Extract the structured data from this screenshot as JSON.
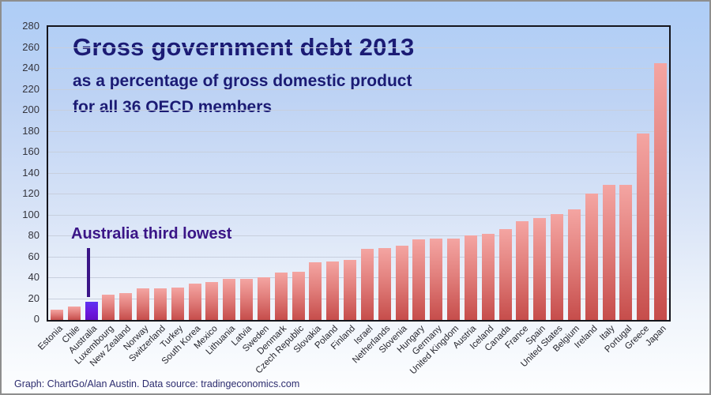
{
  "figure": {
    "title": "Gross government debt 2013",
    "subtitle_line1": "as a percentage of gross domestic product",
    "subtitle_line2": "for all 36 OECD members",
    "annotation": "Australia third lowest",
    "footer": "Graph: ChartGo/Alan Austin. Data source: tradingeconomics.com"
  },
  "colors": {
    "title_navy": "#1b1b74",
    "annotation_purple": "#3a1587",
    "bar_red_top": "#f4a5a2",
    "bar_red_bottom": "#c64d4b",
    "bar_highlight_top": "#5d33f2",
    "bar_highlight_bottom": "#6410c6",
    "background_top": "#aecdf6",
    "background_bottom": "#fdfeff",
    "gridline": "#c7cfdd"
  },
  "chart_data": {
    "type": "bar",
    "title": "Gross government debt 2013",
    "subtitle": "as a percentage of gross domestic product for all 36 OECD members",
    "categories": [
      "Estonia",
      "Chile",
      "Australia",
      "Luxembourg",
      "New Zealand",
      "Norway",
      "Switzerland",
      "Turkey",
      "South Korea",
      "Mexico",
      "Lithuania",
      "Latvia",
      "Sweden",
      "Denmark",
      "Czech Republic",
      "Slovakia",
      "Poland",
      "Finland",
      "Israel",
      "Netherlands",
      "Slovenia",
      "Hungary",
      "Germany",
      "United Kingdom",
      "Austria",
      "Iceland",
      "Canada",
      "France",
      "Spain",
      "United States",
      "Belgium",
      "Ireland",
      "Italy",
      "Portugal",
      "Greece",
      "Japan"
    ],
    "values": [
      10,
      13,
      17,
      24,
      26,
      30,
      30,
      31,
      35,
      36,
      39,
      39,
      41,
      45,
      46,
      55,
      56,
      57,
      68,
      69,
      71,
      77,
      78,
      78,
      81,
      82,
      87,
      94,
      97,
      101,
      106,
      121,
      129,
      129,
      178,
      245
    ],
    "highlight_category": "Australia",
    "annotation": "Australia third lowest",
    "xlabel": "",
    "ylabel": "",
    "ylim": [
      0,
      280
    ],
    "ytick_step": 20,
    "grid": true,
    "legend": "none"
  }
}
